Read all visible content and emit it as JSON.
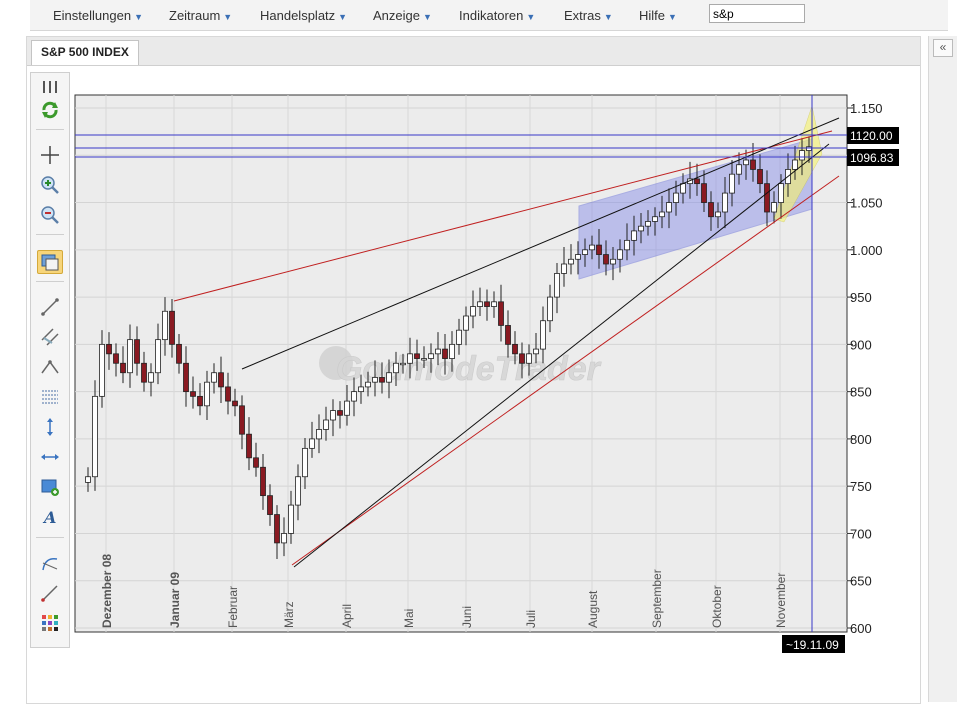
{
  "menu": {
    "items": [
      {
        "label": "Einstellungen"
      },
      {
        "label": "Zeitraum"
      },
      {
        "label": "Handelsplatz"
      },
      {
        "label": "Anzeige"
      },
      {
        "label": "Indikatoren"
      },
      {
        "label": "Extras"
      },
      {
        "label": "Hilfe"
      }
    ],
    "search_value": "s&p"
  },
  "tab": {
    "title": "S&P 500 INDEX"
  },
  "toolbar": {
    "tools": [
      "grip-icon",
      "refresh-icon",
      "crosshair-icon",
      "zoom-in-icon",
      "zoom-out-icon",
      "overlay-icon",
      "trendline-icon",
      "channel-icon",
      "angle-icon",
      "fibonacci-icon",
      "vertical-line-icon",
      "horizontal-line-icon",
      "rectangle-icon",
      "text-icon",
      "arc-icon",
      "ray-icon",
      "palette-icon"
    ],
    "active": "overlay-icon"
  },
  "watermark": "GodmodeTrader",
  "chart_data": {
    "type": "candlestick",
    "title": "",
    "y_axis": {
      "ticks": [
        "1.150",
        "1.100",
        "1.050",
        "1.000",
        "950",
        "900",
        "850",
        "800",
        "750",
        "700",
        "650",
        "600"
      ],
      "range": [
        600,
        1150
      ]
    },
    "x_axis": {
      "months": [
        "Dezember 08",
        "Januar 09",
        "Februar",
        "März",
        "April",
        "Mai",
        "Juni",
        "Juli",
        "August",
        "September",
        "Oktober",
        "November"
      ]
    },
    "price_labels": [
      {
        "text": "1120.00",
        "value": 1120
      },
      {
        "text": "1096.83",
        "value": 1096.83
      }
    ],
    "date_label": "~19.11.09",
    "close_series": [
      760,
      845,
      900,
      890,
      880,
      870,
      905,
      880,
      860,
      870,
      905,
      935,
      900,
      880,
      850,
      845,
      835,
      860,
      870,
      855,
      840,
      835,
      805,
      780,
      770,
      740,
      720,
      690,
      700,
      730,
      760,
      790,
      800,
      810,
      820,
      830,
      825,
      840,
      850,
      855,
      860,
      865,
      860,
      870,
      880,
      880,
      890,
      885,
      885,
      890,
      895,
      885,
      900,
      915,
      930,
      940,
      945,
      940,
      945,
      920,
      900,
      890,
      880,
      890,
      895,
      925,
      950,
      975,
      985,
      990,
      995,
      1000,
      1005,
      995,
      985,
      990,
      1000,
      1010,
      1020,
      1025,
      1030,
      1035,
      1040,
      1050,
      1060,
      1070,
      1075,
      1070,
      1050,
      1035,
      1040,
      1060,
      1080,
      1090,
      1095,
      1085,
      1070,
      1040,
      1050,
      1070,
      1085,
      1095,
      1105,
      1109
    ],
    "annotations": [
      "trendlines",
      "regression-channel",
      "resistance-lines",
      "yellow-wedge"
    ],
    "grid": true
  }
}
